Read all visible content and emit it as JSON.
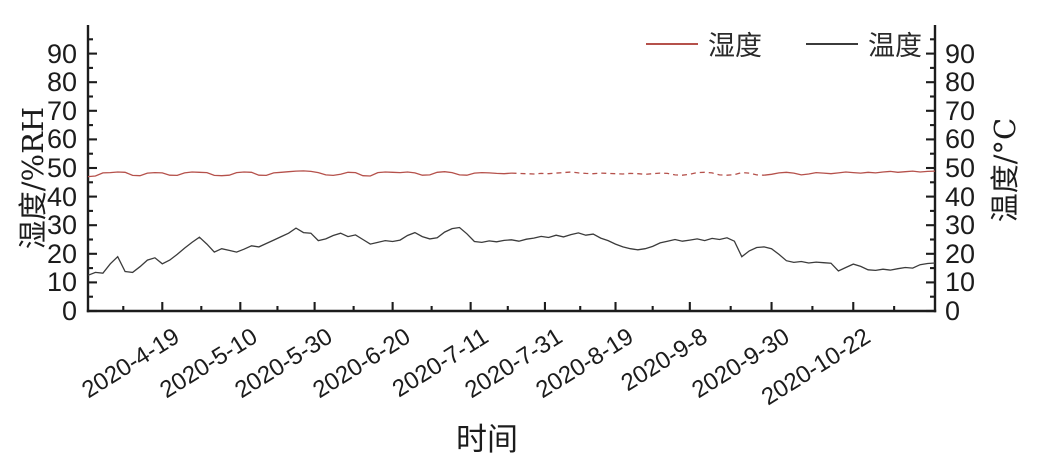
{
  "page": {
    "background": "#ffffff"
  },
  "chart_data": {
    "type": "line",
    "title": "",
    "xlabel": "时间",
    "ylabel_left": "湿度/%RH",
    "ylabel_right": "温度/°C",
    "legend_position": "top-right",
    "grid": false,
    "axis_color": "#1c1c1c",
    "ylim": [
      0,
      100
    ],
    "y_tick_step": 10,
    "y_minor_step": 5,
    "y_ticks": [
      0,
      10,
      20,
      30,
      40,
      50,
      60,
      70,
      80,
      90
    ],
    "x_unit": "days since 2020-3-30",
    "x_range_days": [
      0,
      228
    ],
    "x_ticks": [
      {
        "label": "2020-4-19",
        "day": 20
      },
      {
        "label": "2020-5-10",
        "day": 41
      },
      {
        "label": "2020-5-30",
        "day": 61
      },
      {
        "label": "2020-6-20",
        "day": 82
      },
      {
        "label": "2020-7-11",
        "day": 103
      },
      {
        "label": "2020-7-31",
        "day": 123
      },
      {
        "label": "2020-8-19",
        "day": 142
      },
      {
        "label": "2020-9-8",
        "day": 162
      },
      {
        "label": "2020-9-30",
        "day": 184
      },
      {
        "label": "2020-10-22",
        "day": 206
      }
    ],
    "legend": [
      {
        "label": "湿度",
        "color": "#b5514b"
      },
      {
        "label": "温度",
        "color": "#3b3b3b"
      }
    ],
    "series": [
      {
        "name": "湿度",
        "color": "#b5514b",
        "x_step_days": 2,
        "dash_ranges": [
          [
            116,
            182
          ]
        ],
        "values": [
          47.0,
          47.2,
          48.3,
          48.4,
          48.6,
          48.5,
          47.4,
          47.3,
          48.2,
          48.4,
          48.3,
          47.5,
          47.4,
          48.3,
          48.6,
          48.5,
          48.4,
          47.4,
          47.3,
          47.5,
          48.4,
          48.6,
          48.5,
          47.5,
          47.4,
          48.3,
          48.5,
          48.7,
          48.9,
          49.0,
          48.8,
          48.4,
          47.6,
          47.4,
          47.8,
          48.5,
          48.4,
          47.3,
          47.2,
          48.4,
          48.6,
          48.5,
          48.4,
          48.6,
          48.3,
          47.5,
          47.6,
          48.5,
          48.7,
          48.4,
          47.6,
          47.5,
          48.2,
          48.4,
          48.3,
          48.1,
          48.0,
          48.2,
          48.1,
          48.0,
          47.9,
          48.1,
          48.0,
          48.2,
          48.4,
          48.6,
          48.3,
          48.1,
          48.0,
          48.2,
          48.1,
          48.0,
          47.9,
          48.1,
          48.0,
          47.8,
          48.0,
          48.2,
          48.1,
          47.6,
          47.5,
          47.8,
          48.4,
          48.5,
          48.3,
          47.6,
          47.5,
          47.7,
          48.4,
          48.2,
          47.6,
          47.5,
          47.8,
          48.3,
          48.5,
          48.2,
          47.6,
          47.9,
          48.4,
          48.2,
          48.0,
          48.3,
          48.6,
          48.4,
          48.2,
          48.5,
          48.3,
          48.6,
          48.8,
          48.5,
          48.7,
          48.9,
          48.6,
          48.8,
          48.9
        ]
      },
      {
        "name": "温度",
        "color": "#3b3b3b",
        "x_step_days": 2,
        "dash_ranges": [],
        "values": [
          12.5,
          13.5,
          13.2,
          16.5,
          19.0,
          13.8,
          13.5,
          15.5,
          17.8,
          18.6,
          16.5,
          17.8,
          19.8,
          22.0,
          24.0,
          25.8,
          23.4,
          20.6,
          21.8,
          21.2,
          20.6,
          21.6,
          22.8,
          22.4,
          23.6,
          24.8,
          26.0,
          27.2,
          29.0,
          27.4,
          27.2,
          24.6,
          25.2,
          26.4,
          27.2,
          26.0,
          26.6,
          25.0,
          23.4,
          24.0,
          24.6,
          24.3,
          24.8,
          26.4,
          27.4,
          26.0,
          25.2,
          25.6,
          27.6,
          28.8,
          29.2,
          27.0,
          24.3,
          24.0,
          24.5,
          24.2,
          24.7,
          24.9,
          24.4,
          25.1,
          25.5,
          26.1,
          25.7,
          26.5,
          25.9,
          26.7,
          27.3,
          26.5,
          26.9,
          25.5,
          24.6,
          23.4,
          22.4,
          21.8,
          21.4,
          21.8,
          22.6,
          23.8,
          24.4,
          25.0,
          24.4,
          24.8,
          25.2,
          24.6,
          25.4,
          25.0,
          25.6,
          24.4,
          19.0,
          21.0,
          22.2,
          22.4,
          21.8,
          19.8,
          17.6,
          17.0,
          17.3,
          16.8,
          17.1,
          16.9,
          16.7,
          14.0,
          15.2,
          16.4,
          15.6,
          14.4,
          14.2,
          14.6,
          14.3,
          14.8,
          15.2,
          15.0,
          16.2,
          16.6,
          16.8
        ]
      }
    ]
  }
}
